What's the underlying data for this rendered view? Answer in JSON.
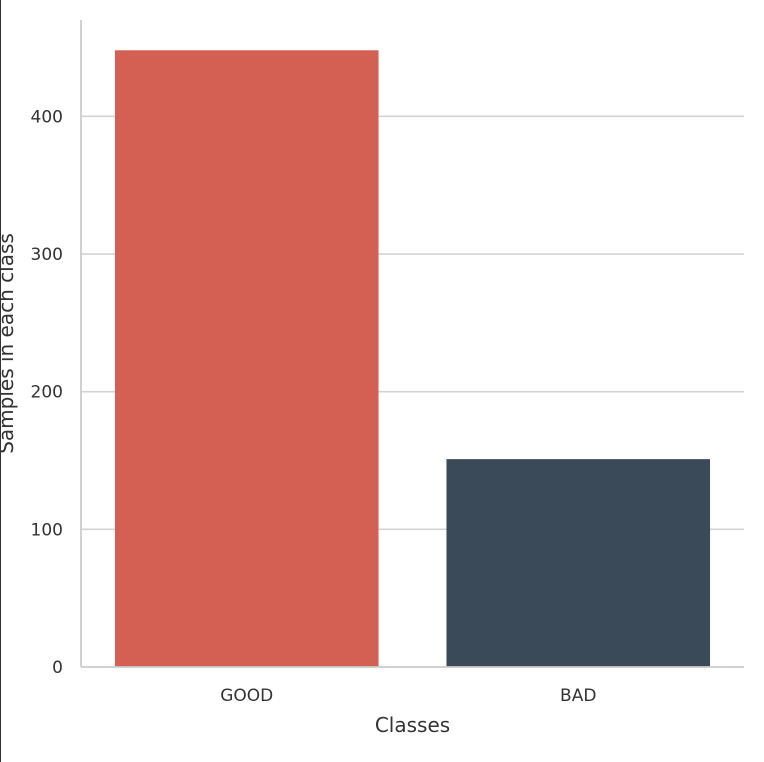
{
  "chart_data": {
    "type": "bar",
    "categories": [
      "GOOD",
      "BAD"
    ],
    "values": [
      448,
      151
    ],
    "xlabel": "Classes",
    "ylabel": "Samples in each class",
    "ylim": [
      0,
      470
    ],
    "yticks": [
      0,
      100,
      200,
      300,
      400
    ],
    "grid": "horizontal",
    "colors": {
      "bars": [
        "#d46054",
        "#3b4a59"
      ],
      "grid": "#d3d3d3",
      "axis": "#cccccc",
      "text": "#333333"
    }
  }
}
